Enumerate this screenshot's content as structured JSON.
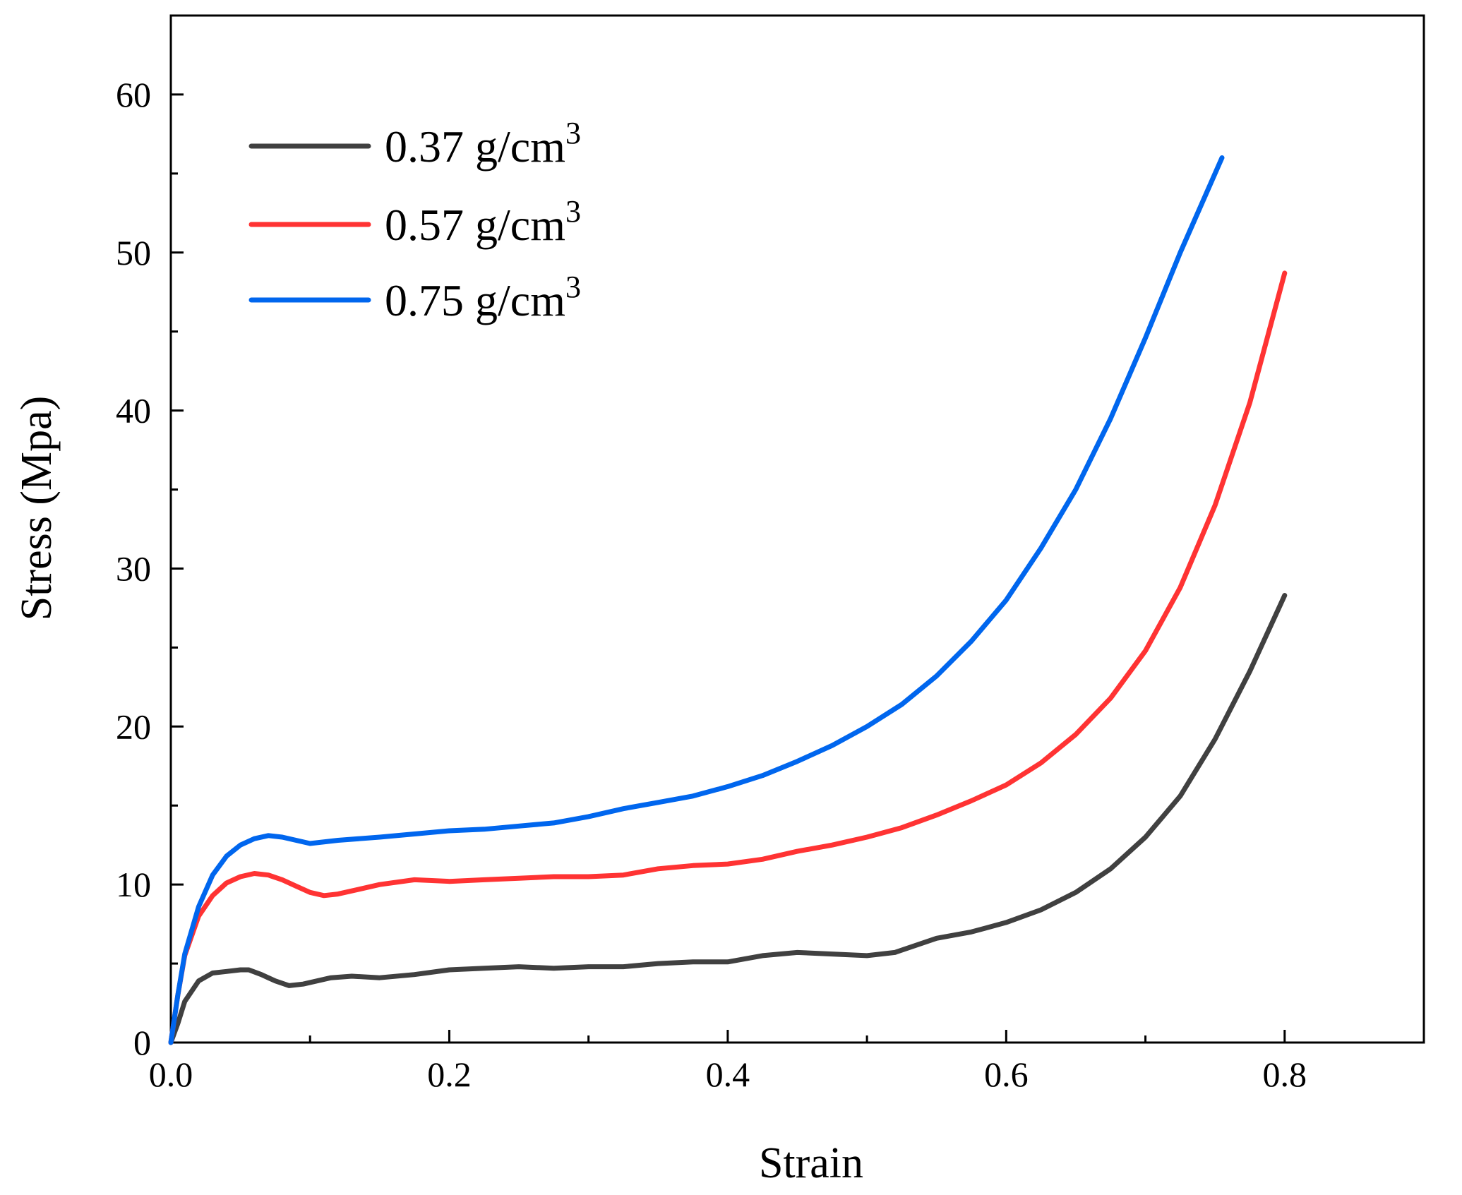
{
  "chart_data": {
    "type": "line",
    "title": "",
    "xlabel": "Strain",
    "ylabel": "Stress (Mpa)",
    "xlim": [
      0,
      0.9
    ],
    "ylim": [
      0,
      65
    ],
    "x_ticks": [
      0.0,
      0.2,
      0.4,
      0.6,
      0.8
    ],
    "x_tick_labels": [
      "0.0",
      "0.2",
      "0.4",
      "0.6",
      "0.8"
    ],
    "x_minor_ticks": [
      0.1,
      0.3,
      0.5,
      0.7
    ],
    "y_ticks": [
      0,
      10,
      20,
      30,
      40,
      50,
      60
    ],
    "y_tick_labels": [
      "0",
      "10",
      "20",
      "30",
      "40",
      "50",
      "60"
    ],
    "y_minor_ticks": [
      5,
      15,
      25,
      35,
      45,
      55
    ],
    "grid": false,
    "legend_position": "top-left",
    "series": [
      {
        "name": "0.37 g/cm",
        "name_superscript": "3",
        "color": "#404040",
        "x": [
          0.0,
          0.005,
          0.01,
          0.02,
          0.03,
          0.04,
          0.05,
          0.056,
          0.065,
          0.075,
          0.085,
          0.095,
          0.105,
          0.115,
          0.13,
          0.15,
          0.175,
          0.2,
          0.225,
          0.25,
          0.275,
          0.3,
          0.325,
          0.35,
          0.375,
          0.4,
          0.425,
          0.45,
          0.475,
          0.5,
          0.52,
          0.55,
          0.575,
          0.6,
          0.625,
          0.65,
          0.675,
          0.7,
          0.725,
          0.75,
          0.775,
          0.8
        ],
        "y": [
          0.0,
          1.2,
          2.6,
          3.9,
          4.4,
          4.5,
          4.6,
          4.6,
          4.3,
          3.9,
          3.6,
          3.7,
          3.9,
          4.1,
          4.2,
          4.1,
          4.3,
          4.6,
          4.7,
          4.8,
          4.7,
          4.8,
          4.8,
          5.0,
          5.1,
          5.1,
          5.5,
          5.7,
          5.6,
          5.5,
          5.7,
          6.6,
          7.0,
          7.6,
          8.4,
          9.5,
          11.0,
          13.0,
          15.6,
          19.2,
          23.5,
          28.3
        ]
      },
      {
        "name": "0.57 g/cm",
        "name_superscript": "3",
        "color": "#ff3333",
        "x": [
          0.0,
          0.005,
          0.01,
          0.02,
          0.03,
          0.04,
          0.05,
          0.06,
          0.07,
          0.08,
          0.09,
          0.1,
          0.11,
          0.12,
          0.135,
          0.15,
          0.175,
          0.2,
          0.225,
          0.25,
          0.275,
          0.3,
          0.325,
          0.35,
          0.375,
          0.4,
          0.425,
          0.45,
          0.475,
          0.5,
          0.525,
          0.55,
          0.575,
          0.6,
          0.625,
          0.65,
          0.675,
          0.7,
          0.725,
          0.75,
          0.775,
          0.8
        ],
        "y": [
          0.0,
          3.0,
          5.5,
          8.0,
          9.3,
          10.1,
          10.5,
          10.7,
          10.6,
          10.3,
          9.9,
          9.5,
          9.3,
          9.4,
          9.7,
          10.0,
          10.3,
          10.2,
          10.3,
          10.4,
          10.5,
          10.5,
          10.6,
          11.0,
          11.2,
          11.3,
          11.6,
          12.1,
          12.5,
          13.0,
          13.6,
          14.4,
          15.3,
          16.3,
          17.7,
          19.5,
          21.8,
          24.8,
          28.8,
          34.0,
          40.5,
          48.7
        ]
      },
      {
        "name": "0.75 g/cm",
        "name_superscript": "3",
        "color": "#0066ee",
        "x": [
          0.0,
          0.005,
          0.01,
          0.02,
          0.03,
          0.04,
          0.05,
          0.06,
          0.07,
          0.08,
          0.09,
          0.1,
          0.12,
          0.15,
          0.175,
          0.2,
          0.225,
          0.25,
          0.275,
          0.3,
          0.325,
          0.35,
          0.375,
          0.4,
          0.425,
          0.45,
          0.475,
          0.5,
          0.525,
          0.55,
          0.575,
          0.6,
          0.625,
          0.65,
          0.675,
          0.7,
          0.725,
          0.755
        ],
        "y": [
          0.0,
          3.0,
          5.6,
          8.6,
          10.6,
          11.8,
          12.5,
          12.9,
          13.1,
          13.0,
          12.8,
          12.6,
          12.8,
          13.0,
          13.2,
          13.4,
          13.5,
          13.7,
          13.9,
          14.3,
          14.8,
          15.2,
          15.6,
          16.2,
          16.9,
          17.8,
          18.8,
          20.0,
          21.4,
          23.2,
          25.4,
          28.0,
          31.3,
          35.0,
          39.5,
          44.6,
          50.0,
          56.0
        ]
      }
    ]
  }
}
